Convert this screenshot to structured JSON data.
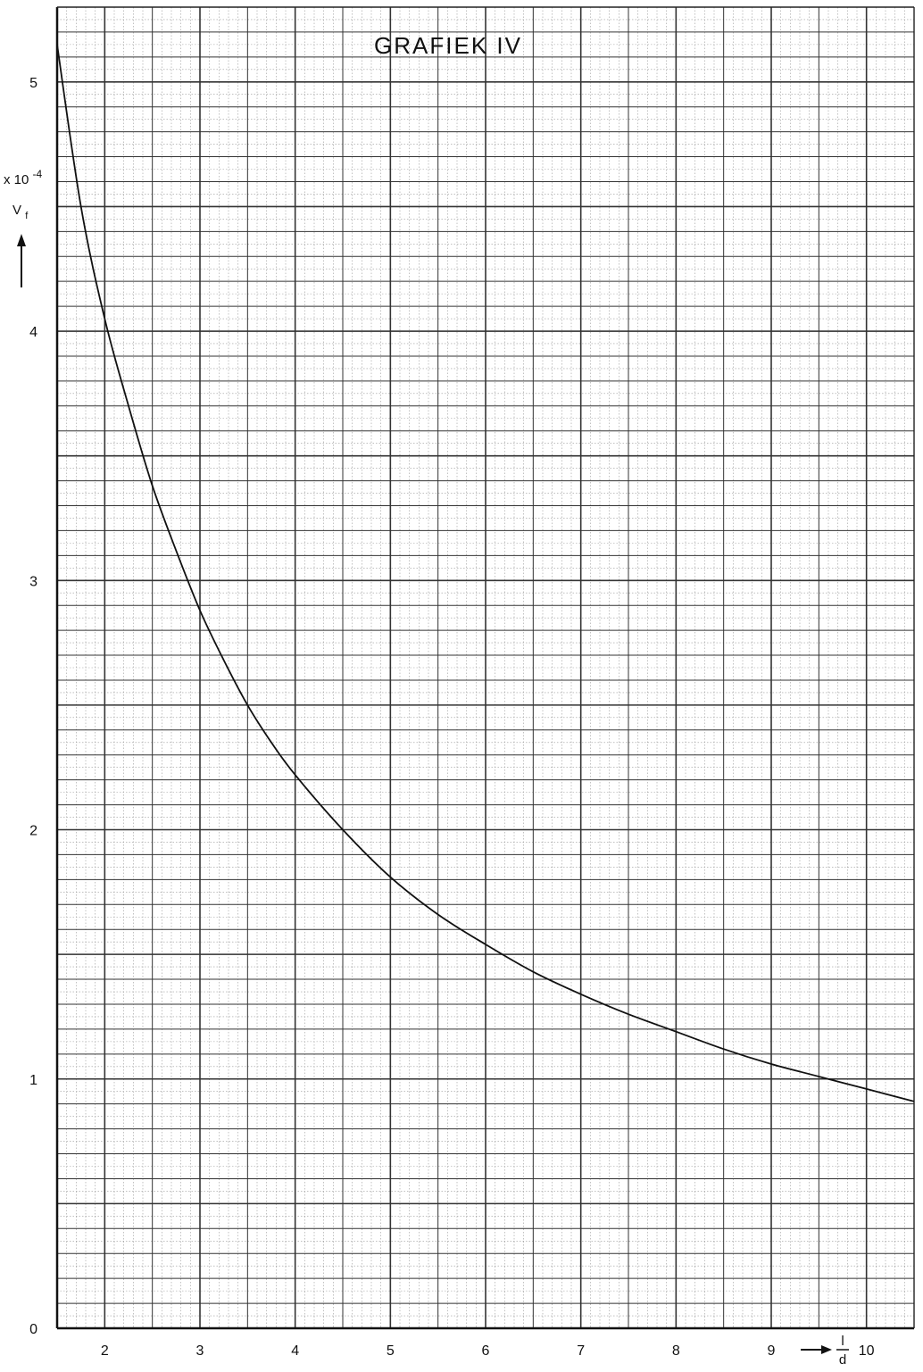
{
  "chart_data": {
    "type": "line",
    "title": "GRAFIEK IV",
    "xlabel_numerator": "l",
    "xlabel_denominator": "d",
    "ylabel": "V",
    "ylabel_subscript": "f",
    "ylabel_multiplier": "x 10",
    "ylabel_exponent": "-4",
    "xlim": [
      1.5,
      10.5
    ],
    "ylim": [
      0,
      5.3
    ],
    "grid": true,
    "x_ticks": [
      2,
      3,
      4,
      5,
      6,
      7,
      8,
      9,
      10
    ],
    "x_tick_labels": [
      "2",
      "3",
      "4",
      "5",
      "6",
      "7",
      "8",
      "9",
      "10"
    ],
    "y_ticks": [
      0,
      1,
      2,
      3,
      4,
      5
    ],
    "y_tick_labels": [
      "0",
      "1",
      "2",
      "3",
      "4",
      "5"
    ],
    "series": [
      {
        "x": [
          1.5,
          1.75,
          2.0,
          2.25,
          2.5,
          2.75,
          3.0,
          3.25,
          3.5,
          3.75,
          4.0,
          4.5,
          5.0,
          5.5,
          6.0,
          6.5,
          7.0,
          7.5,
          8.0,
          8.5,
          9.0,
          9.5,
          10.0,
          10.5
        ],
        "y": [
          5.15,
          4.5,
          4.05,
          3.7,
          3.38,
          3.12,
          2.88,
          2.68,
          2.5,
          2.35,
          2.22,
          2.0,
          1.81,
          1.66,
          1.54,
          1.43,
          1.34,
          1.26,
          1.19,
          1.12,
          1.06,
          1.01,
          0.96,
          0.91
        ]
      }
    ]
  }
}
